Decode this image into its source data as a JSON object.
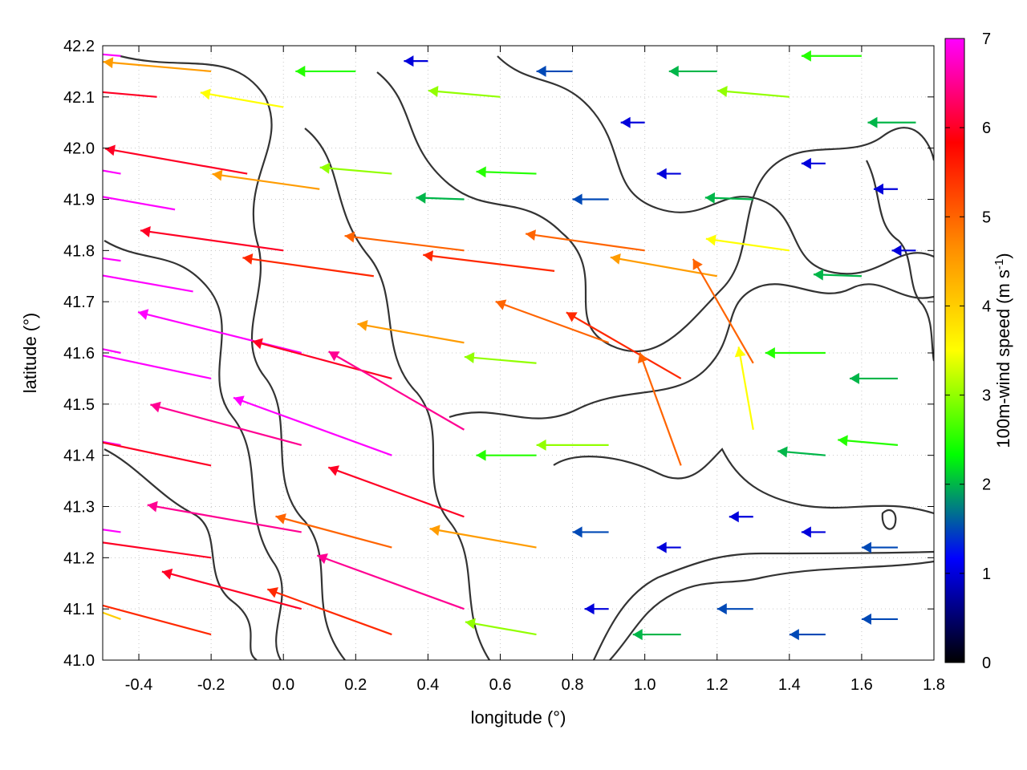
{
  "chart_data": {
    "type": "vector-field",
    "title": "",
    "xlabel": "longitude (°)",
    "ylabel": "latitude (°)",
    "colorbar_label": "100m-wind speed (m s",
    "colorbar_label_sup": "-1",
    "colorbar_label_end": ")",
    "xlim": [
      -0.5,
      1.8
    ],
    "ylim": [
      41.0,
      42.2
    ],
    "xticks": [
      "-0.4",
      "-0.2",
      "0.0",
      "0.2",
      "0.4",
      "0.6",
      "0.8",
      "1.0",
      "1.2",
      "1.4",
      "1.6",
      "1.8"
    ],
    "xtick_values": [
      -0.4,
      -0.2,
      0.0,
      0.2,
      0.4,
      0.6,
      0.8,
      1.0,
      1.2,
      1.4,
      1.6,
      1.8
    ],
    "yticks": [
      "41.0",
      "41.1",
      "41.2",
      "41.3",
      "41.4",
      "41.5",
      "41.6",
      "41.7",
      "41.8",
      "41.9",
      "42.0",
      "42.1",
      "42.2"
    ],
    "ytick_values": [
      41.0,
      41.1,
      41.2,
      41.3,
      41.4,
      41.5,
      41.6,
      41.7,
      41.8,
      41.9,
      42.0,
      42.1,
      42.2
    ],
    "colorbar_range": [
      0,
      7
    ],
    "colorbar_ticks": [
      "0",
      "1",
      "2",
      "3",
      "4",
      "5",
      "6",
      "7"
    ],
    "colorbar_tick_values": [
      0,
      1,
      2,
      3,
      4,
      5,
      6,
      7
    ],
    "colorbar_colors": [
      "#000000",
      "#0000ff",
      "#00ff00",
      "#ffff00",
      "#ff8c00",
      "#ff0000",
      "#ff00ff"
    ],
    "grid": true,
    "wind_vectors": [
      {
        "lon": -0.45,
        "lat": 42.18,
        "speed": 7.0,
        "dir_deg": 175
      },
      {
        "lon": -0.35,
        "lat": 42.1,
        "speed": 6.0,
        "dir_deg": 175
      },
      {
        "lon": -0.2,
        "lat": 42.15,
        "speed": 4.5,
        "dir_deg": 175
      },
      {
        "lon": 0.0,
        "lat": 42.08,
        "speed": 3.5,
        "dir_deg": 170
      },
      {
        "lon": 0.2,
        "lat": 42.15,
        "speed": 2.5,
        "dir_deg": 180
      },
      {
        "lon": 0.4,
        "lat": 42.17,
        "speed": 1.0,
        "dir_deg": 180
      },
      {
        "lon": 0.6,
        "lat": 42.1,
        "speed": 3.0,
        "dir_deg": 175
      },
      {
        "lon": 0.8,
        "lat": 42.15,
        "speed": 1.5,
        "dir_deg": 180
      },
      {
        "lon": 1.0,
        "lat": 42.05,
        "speed": 1.0,
        "dir_deg": 180
      },
      {
        "lon": 1.2,
        "lat": 42.15,
        "speed": 2.0,
        "dir_deg": 180
      },
      {
        "lon": 1.4,
        "lat": 42.1,
        "speed": 3.0,
        "dir_deg": 175
      },
      {
        "lon": 1.6,
        "lat": 42.18,
        "speed": 2.5,
        "dir_deg": 180
      },
      {
        "lon": 1.75,
        "lat": 42.05,
        "speed": 2.0,
        "dir_deg": 180
      },
      {
        "lon": -0.45,
        "lat": 41.95,
        "speed": 7.0,
        "dir_deg": 170
      },
      {
        "lon": -0.3,
        "lat": 41.88,
        "speed": 7.0,
        "dir_deg": 170
      },
      {
        "lon": -0.1,
        "lat": 41.95,
        "speed": 6.0,
        "dir_deg": 170
      },
      {
        "lon": 0.1,
        "lat": 41.92,
        "speed": 4.5,
        "dir_deg": 172
      },
      {
        "lon": 0.3,
        "lat": 41.95,
        "speed": 3.0,
        "dir_deg": 175
      },
      {
        "lon": 0.5,
        "lat": 41.9,
        "speed": 2.0,
        "dir_deg": 178
      },
      {
        "lon": 0.7,
        "lat": 41.95,
        "speed": 2.5,
        "dir_deg": 178
      },
      {
        "lon": 0.9,
        "lat": 41.9,
        "speed": 1.5,
        "dir_deg": 180
      },
      {
        "lon": 1.1,
        "lat": 41.95,
        "speed": 1.0,
        "dir_deg": 180
      },
      {
        "lon": 1.3,
        "lat": 41.9,
        "speed": 2.0,
        "dir_deg": 178
      },
      {
        "lon": 1.5,
        "lat": 41.97,
        "speed": 1.0,
        "dir_deg": 180
      },
      {
        "lon": 1.7,
        "lat": 41.92,
        "speed": 1.0,
        "dir_deg": 180
      },
      {
        "lon": -0.45,
        "lat": 41.78,
        "speed": 7.0,
        "dir_deg": 172
      },
      {
        "lon": -0.25,
        "lat": 41.72,
        "speed": 7.0,
        "dir_deg": 170
      },
      {
        "lon": 0.0,
        "lat": 41.8,
        "speed": 6.0,
        "dir_deg": 172
      },
      {
        "lon": 0.25,
        "lat": 41.75,
        "speed": 5.5,
        "dir_deg": 172
      },
      {
        "lon": 0.5,
        "lat": 41.8,
        "speed": 5.0,
        "dir_deg": 173
      },
      {
        "lon": 0.75,
        "lat": 41.76,
        "speed": 5.5,
        "dir_deg": 173
      },
      {
        "lon": 1.0,
        "lat": 41.8,
        "speed": 5.0,
        "dir_deg": 172
      },
      {
        "lon": 1.2,
        "lat": 41.75,
        "speed": 4.5,
        "dir_deg": 170
      },
      {
        "lon": 1.4,
        "lat": 41.8,
        "speed": 3.5,
        "dir_deg": 172
      },
      {
        "lon": 1.6,
        "lat": 41.75,
        "speed": 2.0,
        "dir_deg": 178
      },
      {
        "lon": 1.75,
        "lat": 41.8,
        "speed": 1.0,
        "dir_deg": 180
      },
      {
        "lon": -0.45,
        "lat": 41.6,
        "speed": 7.0,
        "dir_deg": 168
      },
      {
        "lon": -0.2,
        "lat": 41.55,
        "speed": 7.0,
        "dir_deg": 168
      },
      {
        "lon": 0.05,
        "lat": 41.6,
        "speed": 7.0,
        "dir_deg": 166
      },
      {
        "lon": 0.3,
        "lat": 41.55,
        "speed": 6.0,
        "dir_deg": 165
      },
      {
        "lon": 0.5,
        "lat": 41.62,
        "speed": 4.5,
        "dir_deg": 170
      },
      {
        "lon": 0.7,
        "lat": 41.58,
        "speed": 3.0,
        "dir_deg": 175
      },
      {
        "lon": 0.9,
        "lat": 41.62,
        "speed": 5.0,
        "dir_deg": 160
      },
      {
        "lon": 1.1,
        "lat": 41.55,
        "speed": 5.5,
        "dir_deg": 150
      },
      {
        "lon": 1.3,
        "lat": 41.58,
        "speed": 5.0,
        "dir_deg": 120
      },
      {
        "lon": 1.5,
        "lat": 41.6,
        "speed": 2.5,
        "dir_deg": 180
      },
      {
        "lon": 1.7,
        "lat": 41.55,
        "speed": 2.0,
        "dir_deg": 180
      },
      {
        "lon": -0.45,
        "lat": 41.42,
        "speed": 7.0,
        "dir_deg": 170
      },
      {
        "lon": -0.2,
        "lat": 41.38,
        "speed": 6.0,
        "dir_deg": 168
      },
      {
        "lon": 0.05,
        "lat": 41.42,
        "speed": 6.5,
        "dir_deg": 165
      },
      {
        "lon": 0.3,
        "lat": 41.4,
        "speed": 7.0,
        "dir_deg": 160
      },
      {
        "lon": 0.5,
        "lat": 41.45,
        "speed": 6.5,
        "dir_deg": 150
      },
      {
        "lon": 0.7,
        "lat": 41.4,
        "speed": 2.5,
        "dir_deg": 180
      },
      {
        "lon": 0.9,
        "lat": 41.42,
        "speed": 3.0,
        "dir_deg": 180
      },
      {
        "lon": 1.1,
        "lat": 41.38,
        "speed": 5.0,
        "dir_deg": 110
      },
      {
        "lon": 1.3,
        "lat": 41.45,
        "speed": 3.5,
        "dir_deg": 100
      },
      {
        "lon": 1.5,
        "lat": 41.4,
        "speed": 2.0,
        "dir_deg": 175
      },
      {
        "lon": 1.7,
        "lat": 41.42,
        "speed": 2.5,
        "dir_deg": 175
      },
      {
        "lon": -0.45,
        "lat": 41.25,
        "speed": 7.0,
        "dir_deg": 172
      },
      {
        "lon": -0.2,
        "lat": 41.2,
        "speed": 6.0,
        "dir_deg": 172
      },
      {
        "lon": 0.05,
        "lat": 41.25,
        "speed": 6.5,
        "dir_deg": 170
      },
      {
        "lon": 0.3,
        "lat": 41.22,
        "speed": 5.0,
        "dir_deg": 165
      },
      {
        "lon": 0.5,
        "lat": 41.28,
        "speed": 6.0,
        "dir_deg": 160
      },
      {
        "lon": 0.7,
        "lat": 41.22,
        "speed": 4.5,
        "dir_deg": 170
      },
      {
        "lon": 0.9,
        "lat": 41.25,
        "speed": 1.5,
        "dir_deg": 180
      },
      {
        "lon": 1.1,
        "lat": 41.22,
        "speed": 1.0,
        "dir_deg": 180
      },
      {
        "lon": 1.3,
        "lat": 41.28,
        "speed": 1.0,
        "dir_deg": 180
      },
      {
        "lon": 1.5,
        "lat": 41.25,
        "speed": 1.0,
        "dir_deg": 180
      },
      {
        "lon": 1.7,
        "lat": 41.22,
        "speed": 1.5,
        "dir_deg": 180
      },
      {
        "lon": -0.45,
        "lat": 41.08,
        "speed": 4.0,
        "dir_deg": 160
      },
      {
        "lon": -0.2,
        "lat": 41.05,
        "speed": 5.5,
        "dir_deg": 165
      },
      {
        "lon": 0.05,
        "lat": 41.1,
        "speed": 6.0,
        "dir_deg": 165
      },
      {
        "lon": 0.3,
        "lat": 41.05,
        "speed": 5.5,
        "dir_deg": 160
      },
      {
        "lon": 0.5,
        "lat": 41.1,
        "speed": 6.5,
        "dir_deg": 160
      },
      {
        "lon": 0.7,
        "lat": 41.05,
        "speed": 3.0,
        "dir_deg": 170
      },
      {
        "lon": 0.9,
        "lat": 41.1,
        "speed": 1.0,
        "dir_deg": 180
      },
      {
        "lon": 1.1,
        "lat": 41.05,
        "speed": 2.0,
        "dir_deg": 180
      },
      {
        "lon": 1.3,
        "lat": 41.1,
        "speed": 1.5,
        "dir_deg": 180
      },
      {
        "lon": 1.5,
        "lat": 41.05,
        "speed": 1.5,
        "dir_deg": 180
      },
      {
        "lon": 1.7,
        "lat": 41.08,
        "speed": 1.5,
        "dir_deg": 180
      }
    ]
  }
}
